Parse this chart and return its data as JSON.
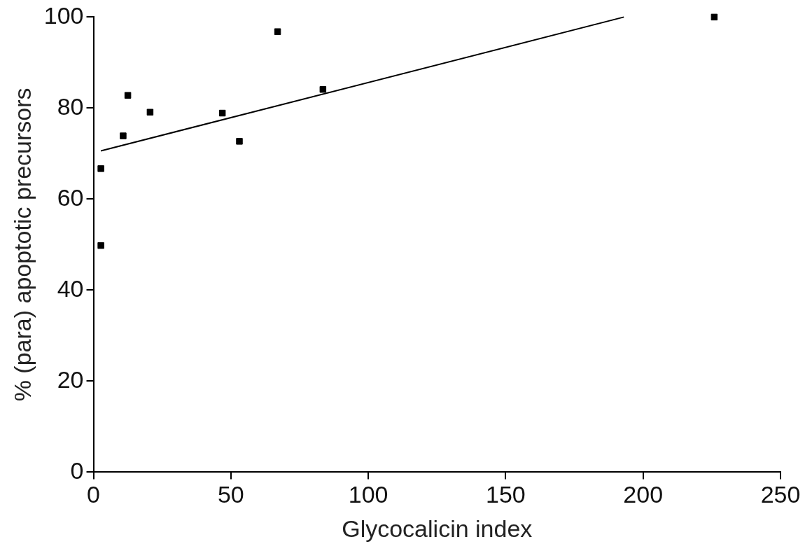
{
  "chart_data": {
    "type": "scatter",
    "xlabel": "Glycocalicin index",
    "ylabel": "% (para) apoptotic precursors",
    "xlim": [
      0,
      250
    ],
    "xticks": [
      0,
      50,
      100,
      150,
      200,
      250
    ],
    "ylim": [
      0,
      100
    ],
    "yticks": [
      0,
      20,
      40,
      60,
      80,
      100
    ],
    "grid": false,
    "legend": false,
    "marker": "square",
    "series": [
      {
        "color": "#000000",
        "x": [
          2.7,
          2.7,
          10.8,
          12.5,
          20.6,
          46.9,
          53.1,
          67,
          83.5,
          225.9
        ],
        "values": [
          66.7,
          49.8,
          73.9,
          82.8,
          79.1,
          78.9,
          72.7,
          96.8,
          84.1,
          100
        ]
      },
      {
        "type": "line",
        "color": "#000000",
        "x": [
          2.7,
          193
        ],
        "values": [
          70.6,
          100
        ],
        "marker": "none",
        "line_style": "solid"
      }
    ]
  }
}
